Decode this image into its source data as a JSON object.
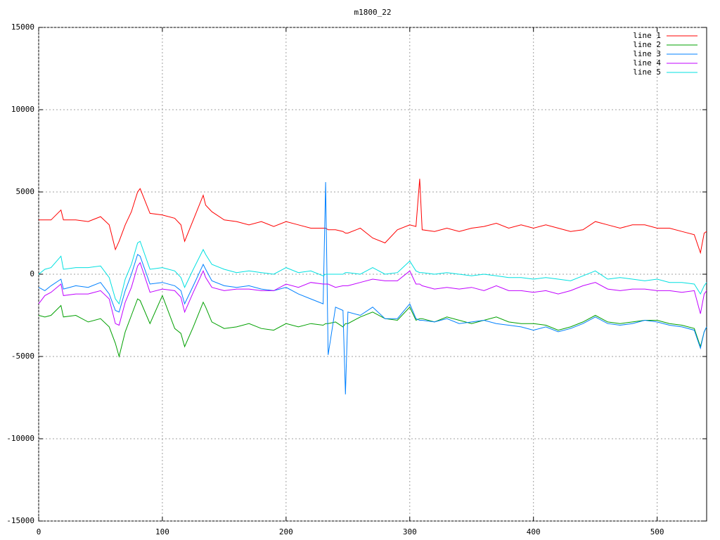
{
  "chart_data": {
    "type": "line",
    "title": "m1800_22",
    "x": [
      0,
      5,
      10,
      18,
      20,
      30,
      40,
      50,
      57,
      62,
      65,
      70,
      75,
      80,
      82,
      90,
      100,
      110,
      115,
      118,
      125,
      133,
      135,
      140,
      150,
      160,
      170,
      180,
      190,
      200,
      210,
      220,
      230,
      232,
      234,
      240,
      246,
      248,
      250,
      260,
      270,
      280,
      290,
      300,
      305,
      308,
      310,
      320,
      330,
      340,
      350,
      360,
      370,
      380,
      390,
      400,
      410,
      420,
      430,
      440,
      450,
      460,
      470,
      480,
      490,
      500,
      510,
      520,
      530,
      535,
      538,
      540
    ],
    "series": [
      {
        "name": "line 1",
        "color": "#ff0000",
        "values": [
          3300,
          3300,
          3300,
          3900,
          3300,
          3300,
          3200,
          3500,
          3000,
          1500,
          2000,
          3000,
          3800,
          5000,
          5200,
          3700,
          3600,
          3400,
          3000,
          2000,
          3300,
          4800,
          4200,
          3800,
          3300,
          3200,
          3000,
          3200,
          2900,
          3200,
          3000,
          2800,
          2800,
          2800,
          2700,
          2700,
          2600,
          2500,
          2500,
          2800,
          2200,
          1900,
          2700,
          3000,
          2900,
          5800,
          2700,
          2600,
          2800,
          2600,
          2800,
          2900,
          3100,
          2800,
          3000,
          2800,
          3000,
          2800,
          2600,
          2700,
          3200,
          3000,
          2800,
          3000,
          3000,
          2800,
          2800,
          2600,
          2400,
          1300,
          2500,
          2600
        ]
      },
      {
        "name": "line 2",
        "color": "#00a000",
        "values": [
          -2500,
          -2600,
          -2500,
          -1900,
          -2600,
          -2500,
          -2900,
          -2700,
          -3200,
          -4200,
          -5000,
          -3500,
          -2500,
          -1500,
          -1600,
          -3000,
          -1300,
          -3300,
          -3600,
          -4400,
          -3200,
          -1700,
          -2000,
          -2900,
          -3300,
          -3200,
          -3000,
          -3300,
          -3400,
          -3000,
          -3200,
          -3000,
          -3100,
          -3000,
          -3000,
          -2900,
          -3200,
          -3000,
          -3000,
          -2600,
          -2300,
          -2700,
          -2800,
          -2000,
          -2800,
          -2700,
          -2700,
          -2900,
          -2600,
          -2800,
          -3000,
          -2800,
          -2600,
          -2900,
          -3000,
          -3000,
          -3100,
          -3400,
          -3200,
          -2900,
          -2500,
          -2900,
          -3000,
          -2900,
          -2800,
          -2800,
          -3000,
          -3100,
          -3300,
          -4400,
          -3500,
          -3200
        ]
      },
      {
        "name": "line 3",
        "color": "#0080ff",
        "values": [
          -800,
          -1000,
          -700,
          -300,
          -900,
          -700,
          -800,
          -500,
          -1200,
          -2200,
          -2300,
          -1000,
          0,
          1200,
          1100,
          -600,
          -500,
          -700,
          -1000,
          -1800,
          -700,
          600,
          300,
          -400,
          -700,
          -800,
          -700,
          -900,
          -1000,
          -800,
          -1200,
          -1500,
          -1800,
          5600,
          -4900,
          -2000,
          -2200,
          -7300,
          -2300,
          -2500,
          -2000,
          -2700,
          -2700,
          -1800,
          -2700,
          -2800,
          -2800,
          -2900,
          -2700,
          -3000,
          -2900,
          -2800,
          -3000,
          -3100,
          -3200,
          -3400,
          -3200,
          -3500,
          -3300,
          -3000,
          -2600,
          -3000,
          -3100,
          -3000,
          -2800,
          -2900,
          -3100,
          -3200,
          -3400,
          -4500,
          -3500,
          -3200
        ]
      },
      {
        "name": "line 4",
        "color": "#c000ff",
        "values": [
          -1800,
          -1300,
          -1100,
          -600,
          -1300,
          -1200,
          -1200,
          -1000,
          -1500,
          -3000,
          -3100,
          -1700,
          -800,
          500,
          700,
          -1100,
          -900,
          -1000,
          -1400,
          -2300,
          -1100,
          200,
          -200,
          -800,
          -1000,
          -900,
          -900,
          -1000,
          -1000,
          -600,
          -800,
          -500,
          -600,
          -600,
          -600,
          -800,
          -700,
          -700,
          -700,
          -500,
          -300,
          -400,
          -400,
          200,
          -600,
          -600,
          -700,
          -900,
          -800,
          -900,
          -800,
          -1000,
          -700,
          -1000,
          -1000,
          -1100,
          -1000,
          -1200,
          -1000,
          -700,
          -500,
          -900,
          -1000,
          -900,
          -900,
          -1000,
          -1000,
          -1100,
          -1000,
          -2400,
          -1200,
          -1000
        ]
      },
      {
        "name": "line 5",
        "color": "#00e0e0",
        "values": [
          0,
          300,
          400,
          1100,
          300,
          400,
          400,
          500,
          -200,
          -1500,
          -1800,
          -300,
          600,
          1900,
          2000,
          300,
          400,
          200,
          -200,
          -800,
          300,
          1500,
          1200,
          600,
          300,
          100,
          200,
          100,
          0,
          400,
          100,
          200,
          -100,
          0,
          0,
          0,
          0,
          100,
          100,
          0,
          400,
          0,
          100,
          800,
          200,
          100,
          100,
          0,
          100,
          0,
          -100,
          0,
          -100,
          -200,
          -200,
          -300,
          -200,
          -300,
          -400,
          -100,
          200,
          -300,
          -200,
          -300,
          -400,
          -300,
          -500,
          -500,
          -600,
          -1200,
          -700,
          -500
        ]
      }
    ],
    "xlim": [
      0,
      540
    ],
    "ylim": [
      -15000,
      15000
    ],
    "xticks": [
      0,
      100,
      200,
      300,
      400,
      500
    ],
    "yticks": [
      -15000,
      -10000,
      -5000,
      0,
      5000,
      10000,
      15000
    ],
    "grid": true,
    "legend": "top-right"
  }
}
